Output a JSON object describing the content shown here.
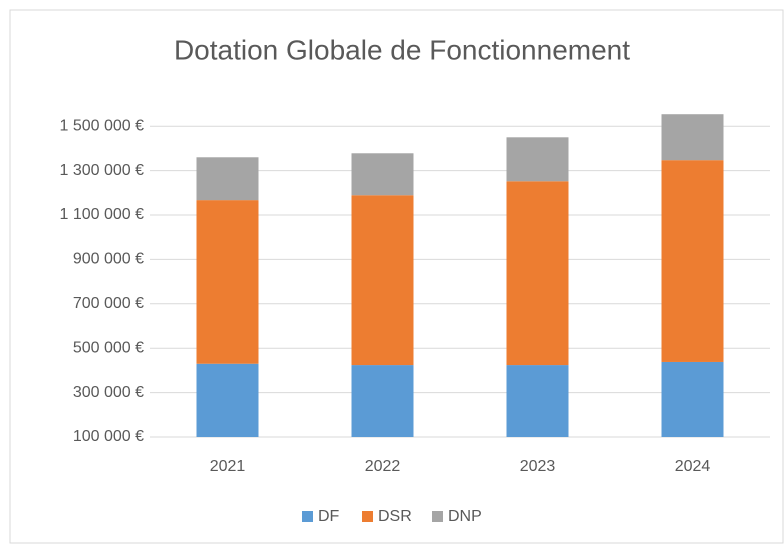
{
  "chart_data": {
    "type": "stacked_bar",
    "title": "Dotation Globale de Fonctionnement",
    "categories": [
      "2021",
      "2022",
      "2023",
      "2024"
    ],
    "series": [
      {
        "name": "DF",
        "color": "#5b9bd5",
        "values": [
          430000,
          424000,
          424000,
          438000
        ]
      },
      {
        "name": "DSR",
        "color": "#ed7d31",
        "values": [
          737000,
          765000,
          828000,
          909000
        ]
      },
      {
        "name": "DNP",
        "color": "#a5a5a5",
        "values": [
          193000,
          189000,
          198000,
          207000
        ]
      }
    ],
    "ylim": [
      100000,
      1600000
    ],
    "yticks": [
      {
        "value": 100000,
        "label": "100 000 €"
      },
      {
        "value": 300000,
        "label": "300 000 €"
      },
      {
        "value": 500000,
        "label": "500 000 €"
      },
      {
        "value": 700000,
        "label": "700 000 €"
      },
      {
        "value": 900000,
        "label": "900 000 €"
      },
      {
        "value": 1100000,
        "label": "1 100 000 €"
      },
      {
        "value": 1300000,
        "label": "1 300 000 €"
      },
      {
        "value": 1500000,
        "label": "1 500 000 €"
      }
    ],
    "grid": true,
    "legend": "bottom"
  }
}
